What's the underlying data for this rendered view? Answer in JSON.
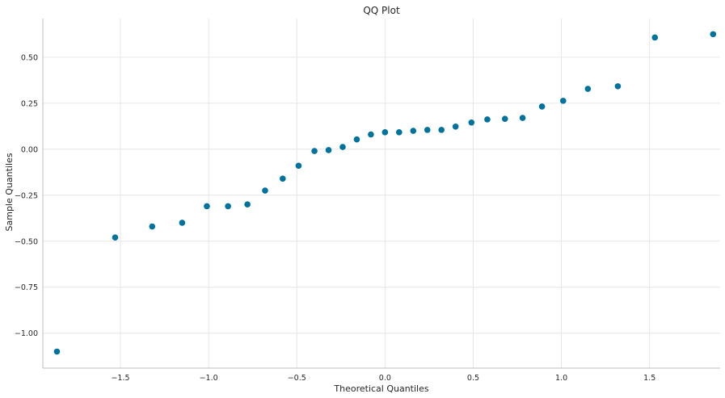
{
  "chart_data": {
    "type": "scatter",
    "title": "QQ Plot",
    "xlabel": "Theoretical Quantiles",
    "ylabel": "Sample Quantiles",
    "xlim": [
      -1.94,
      1.9
    ],
    "ylim": [
      -1.19,
      0.71
    ],
    "xticks": [
      -1.5,
      -1.0,
      -0.5,
      0.0,
      0.5,
      1.0,
      1.5
    ],
    "xtick_labels": [
      "−1.5",
      "−1.0",
      "−0.5",
      "0.0",
      "0.5",
      "1.0",
      "1.5"
    ],
    "yticks": [
      -1.0,
      -0.75,
      -0.5,
      -0.25,
      0.0,
      0.25,
      0.5
    ],
    "ytick_labels": [
      "−1.00",
      "−0.75",
      "−0.50",
      "−0.25",
      "0.00",
      "0.25",
      "0.50"
    ],
    "grid": true,
    "marker_color": "#00729e",
    "points": [
      {
        "x": -1.86,
        "y": -1.1
      },
      {
        "x": -1.53,
        "y": -0.48
      },
      {
        "x": -1.32,
        "y": -0.42
      },
      {
        "x": -1.15,
        "y": -0.4
      },
      {
        "x": -1.01,
        "y": -0.31
      },
      {
        "x": -0.89,
        "y": -0.31
      },
      {
        "x": -0.78,
        "y": -0.3
      },
      {
        "x": -0.68,
        "y": -0.225
      },
      {
        "x": -0.58,
        "y": -0.16
      },
      {
        "x": -0.49,
        "y": -0.09
      },
      {
        "x": -0.4,
        "y": -0.01
      },
      {
        "x": -0.32,
        "y": -0.005
      },
      {
        "x": -0.24,
        "y": 0.012
      },
      {
        "x": -0.16,
        "y": 0.053
      },
      {
        "x": -0.08,
        "y": 0.08
      },
      {
        "x": 0.0,
        "y": 0.092
      },
      {
        "x": 0.08,
        "y": 0.092
      },
      {
        "x": 0.16,
        "y": 0.1
      },
      {
        "x": 0.24,
        "y": 0.105
      },
      {
        "x": 0.32,
        "y": 0.105
      },
      {
        "x": 0.4,
        "y": 0.123
      },
      {
        "x": 0.49,
        "y": 0.145
      },
      {
        "x": 0.58,
        "y": 0.162
      },
      {
        "x": 0.68,
        "y": 0.165
      },
      {
        "x": 0.78,
        "y": 0.17
      },
      {
        "x": 0.89,
        "y": 0.232
      },
      {
        "x": 1.01,
        "y": 0.263
      },
      {
        "x": 1.15,
        "y": 0.328
      },
      {
        "x": 1.32,
        "y": 0.342
      },
      {
        "x": 1.53,
        "y": 0.607
      },
      {
        "x": 1.86,
        "y": 0.625
      }
    ]
  }
}
